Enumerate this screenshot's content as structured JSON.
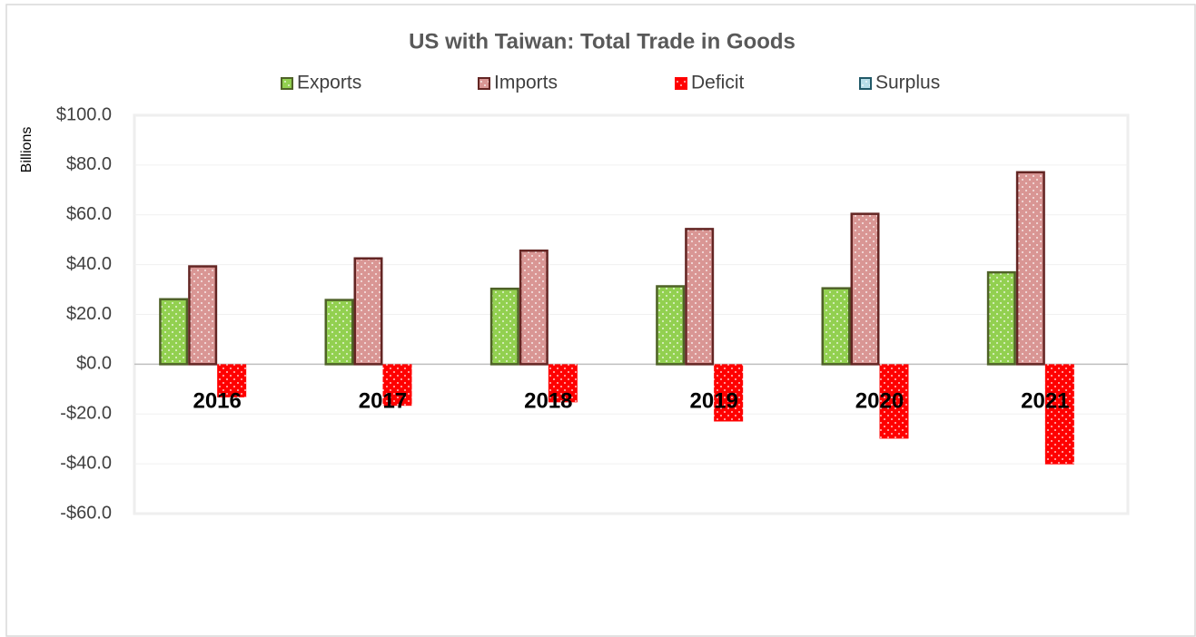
{
  "chart_data": {
    "type": "bar",
    "title": "US with Taiwan: Total Trade in Goods",
    "ylabel": "Billions",
    "categories": [
      "2016",
      "2017",
      "2018",
      "2019",
      "2020",
      "2021"
    ],
    "series": [
      {
        "name": "Exports",
        "color": "#92d050",
        "edgecolor": "#4f6228",
        "values": [
          26.1,
          25.8,
          30.3,
          31.3,
          30.5,
          36.9
        ]
      },
      {
        "name": "Imports",
        "color": "#d99694",
        "edgecolor": "#632523",
        "values": [
          39.3,
          42.5,
          45.6,
          54.3,
          60.4,
          77.1
        ]
      },
      {
        "name": "Deficit",
        "color": "#ff0000",
        "edgecolor": "#ff0000",
        "values": [
          -13.3,
          -16.7,
          -15.3,
          -23.0,
          -29.9,
          -40.2
        ]
      },
      {
        "name": "Surplus",
        "color": "#b7dee8",
        "edgecolor": "#215968",
        "values": [
          0,
          0,
          0,
          0,
          0,
          0
        ]
      }
    ],
    "ylim": [
      -60,
      100
    ],
    "yticks": [
      {
        "value": -60,
        "label": "-$60.0"
      },
      {
        "value": -40,
        "label": "-$40.0"
      },
      {
        "value": -20,
        "label": "-$20.0"
      },
      {
        "value": 0,
        "label": "$0.0"
      },
      {
        "value": 20,
        "label": "$20.0"
      },
      {
        "value": 40,
        "label": "$40.0"
      },
      {
        "value": 60,
        "label": "$60.0"
      },
      {
        "value": 80,
        "label": "$80.0"
      },
      {
        "value": 100,
        "label": "$100.0"
      }
    ],
    "grid": true,
    "legend": "top"
  }
}
